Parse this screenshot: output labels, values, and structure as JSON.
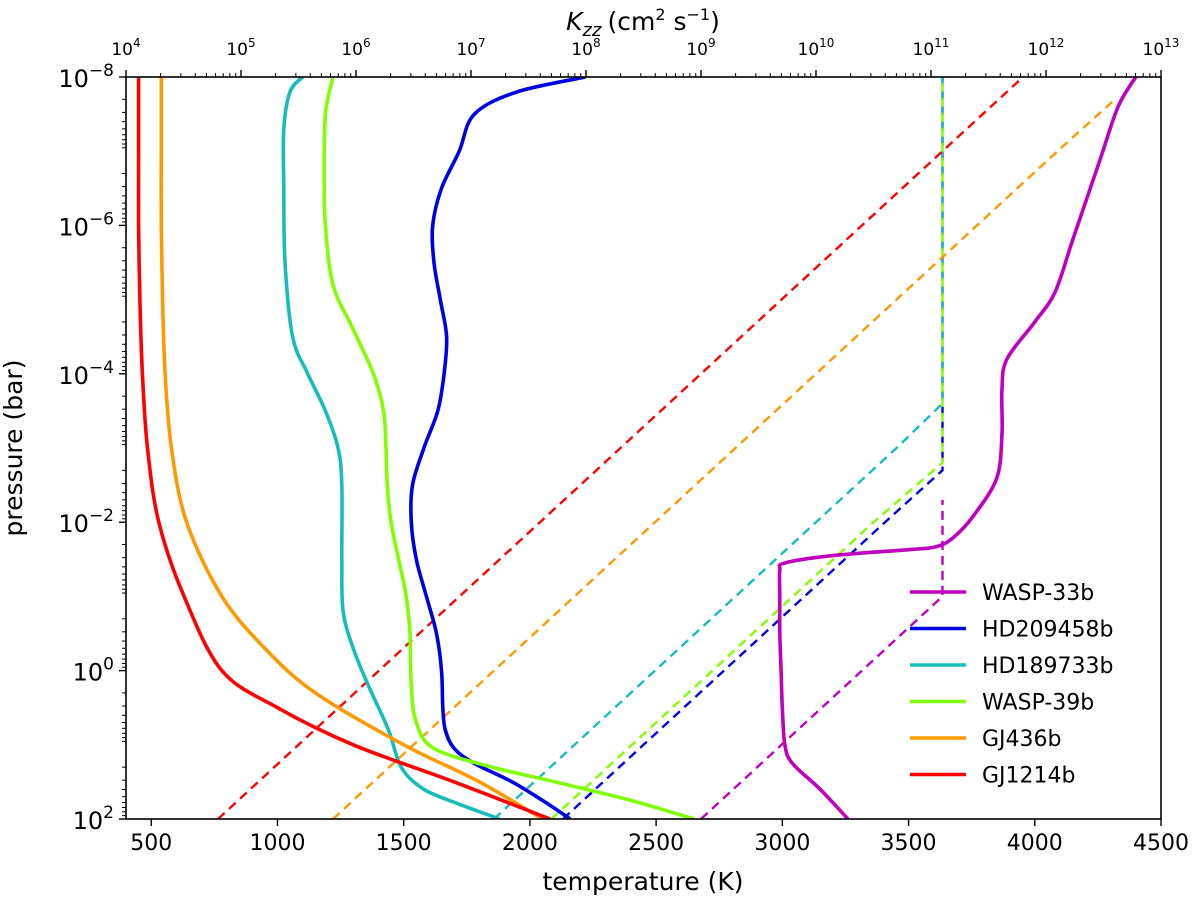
{
  "chart_data": {
    "type": "line",
    "title": "",
    "xlabel": "temperature (K)",
    "ylabel": "pressure (bar)",
    "x2label_base": "K",
    "x2label_sub": "zz",
    "x2label_units_prefix": "(cm",
    "x2label_units_exp1": "2",
    "x2label_units_mid": " s",
    "x2label_units_exp2": "−1",
    "x2label_units_suffix": ")",
    "xlim": [
      400,
      4500
    ],
    "x_ticks": [
      500,
      1000,
      1500,
      2000,
      2500,
      3000,
      3500,
      4000,
      4500
    ],
    "x_tick_labels": [
      "500",
      "1000",
      "1500",
      "2000",
      "2500",
      "3000",
      "3500",
      "4000",
      "4500"
    ],
    "ylim_log10": [
      -8,
      2
    ],
    "y_ticks_log10": [
      -8,
      -6,
      -4,
      -2,
      0,
      2
    ],
    "y_tick_base": "10",
    "y_tick_exponents": [
      "−8",
      "−6",
      "−4",
      "−2",
      "0",
      "2"
    ],
    "x2lim_log10": [
      4,
      13
    ],
    "x2_ticks_log10": [
      4,
      5,
      6,
      7,
      8,
      9,
      10,
      11,
      12,
      13
    ],
    "x2_tick_base": "10",
    "x2_tick_exponents": [
      "4",
      "5",
      "6",
      "7",
      "8",
      "9",
      "10",
      "11",
      "12",
      "13"
    ],
    "legend_position": "lower-right",
    "series": [
      {
        "name": "WASP-33b",
        "color": "#bf00bf",
        "temperature": [
          [
            3260,
            2.0
          ],
          [
            3150,
            1.6
          ],
          [
            3040,
            1.25
          ],
          [
            3010,
            1.0
          ],
          [
            3000,
            0.5
          ],
          [
            2995,
            0.0
          ],
          [
            2990,
            -0.5
          ],
          [
            2990,
            -1.0
          ],
          [
            2990,
            -1.35
          ],
          [
            3010,
            -1.45
          ],
          [
            3200,
            -1.55
          ],
          [
            3500,
            -1.63
          ],
          [
            3610,
            -1.67
          ],
          [
            3680,
            -1.8
          ],
          [
            3760,
            -2.1
          ],
          [
            3850,
            -2.6
          ],
          [
            3870,
            -3.2
          ],
          [
            3870,
            -3.8
          ],
          [
            3890,
            -4.2
          ],
          [
            4000,
            -4.7
          ],
          [
            4080,
            -5.1
          ],
          [
            4150,
            -5.8
          ],
          [
            4260,
            -6.9
          ],
          [
            4330,
            -7.6
          ],
          [
            4400,
            -8.0
          ]
        ],
        "kzz": [
          [
            9.0,
            2.0
          ],
          [
            9.7,
            1.0
          ],
          [
            10.4,
            0.0
          ],
          [
            11.1,
            -1.0
          ],
          [
            11.1,
            -2.0
          ],
          [
            11.1,
            -2.3
          ]
        ]
      },
      {
        "name": "HD209458b",
        "color": "#0000e6",
        "temperature": [
          [
            2160,
            2.0
          ],
          [
            2050,
            1.75
          ],
          [
            1930,
            1.5
          ],
          [
            1780,
            1.25
          ],
          [
            1700,
            1.05
          ],
          [
            1665,
            0.8
          ],
          [
            1655,
            0.5
          ],
          [
            1650,
            0.0
          ],
          [
            1630,
            -0.5
          ],
          [
            1590,
            -1.0
          ],
          [
            1550,
            -1.5
          ],
          [
            1530,
            -2.0
          ],
          [
            1535,
            -2.5
          ],
          [
            1580,
            -3.0
          ],
          [
            1635,
            -3.5
          ],
          [
            1660,
            -4.0
          ],
          [
            1670,
            -4.5
          ],
          [
            1645,
            -5.0
          ],
          [
            1620,
            -5.5
          ],
          [
            1615,
            -6.0
          ],
          [
            1650,
            -6.5
          ],
          [
            1720,
            -7.0
          ],
          [
            1780,
            -7.5
          ],
          [
            1950,
            -7.8
          ],
          [
            2220,
            -8.0
          ]
        ],
        "kzz": [
          [
            7.8,
            2.0
          ],
          [
            8.5,
            1.0
          ],
          [
            9.2,
            0.0
          ],
          [
            9.9,
            -1.0
          ],
          [
            10.6,
            -2.0
          ],
          [
            11.1,
            -2.7
          ],
          [
            11.1,
            -3.0
          ],
          [
            11.1,
            -8.0
          ]
        ]
      },
      {
        "name": "HD189733b",
        "color": "#17bcbc",
        "temperature": [
          [
            1880,
            2.0
          ],
          [
            1720,
            1.8
          ],
          [
            1580,
            1.6
          ],
          [
            1490,
            1.3
          ],
          [
            1440,
            0.8
          ],
          [
            1360,
            0.2
          ],
          [
            1300,
            -0.3
          ],
          [
            1260,
            -0.8
          ],
          [
            1255,
            -1.5
          ],
          [
            1255,
            -2.5
          ],
          [
            1240,
            -3.0
          ],
          [
            1190,
            -3.5
          ],
          [
            1120,
            -4.0
          ],
          [
            1060,
            -4.5
          ],
          [
            1030,
            -5.5
          ],
          [
            1025,
            -6.5
          ],
          [
            1025,
            -7.3
          ],
          [
            1050,
            -7.8
          ],
          [
            1100,
            -8.0
          ]
        ],
        "kzz": [
          [
            7.2,
            2.0
          ],
          [
            7.9,
            1.0
          ],
          [
            8.6,
            0.0
          ],
          [
            9.3,
            -1.0
          ],
          [
            10.0,
            -2.0
          ],
          [
            10.7,
            -3.0
          ],
          [
            11.1,
            -3.6
          ],
          [
            11.1,
            -8.0
          ]
        ]
      },
      {
        "name": "WASP-39b",
        "color": "#80ff00",
        "temperature": [
          [
            2650,
            2.0
          ],
          [
            2400,
            1.75
          ],
          [
            2100,
            1.5
          ],
          [
            1850,
            1.3
          ],
          [
            1620,
            1.05
          ],
          [
            1550,
            0.7
          ],
          [
            1530,
            0.2
          ],
          [
            1525,
            -0.5
          ],
          [
            1510,
            -1.0
          ],
          [
            1480,
            -1.5
          ],
          [
            1450,
            -2.0
          ],
          [
            1435,
            -2.5
          ],
          [
            1430,
            -3.0
          ],
          [
            1420,
            -3.5
          ],
          [
            1380,
            -4.0
          ],
          [
            1300,
            -4.6
          ],
          [
            1220,
            -5.2
          ],
          [
            1190,
            -6.0
          ],
          [
            1185,
            -6.7
          ],
          [
            1190,
            -7.5
          ],
          [
            1220,
            -8.0
          ]
        ],
        "kzz": [
          [
            7.7,
            2.0
          ],
          [
            8.4,
            1.0
          ],
          [
            9.1,
            0.0
          ],
          [
            9.8,
            -1.0
          ],
          [
            10.5,
            -2.0
          ],
          [
            11.1,
            -2.8
          ],
          [
            11.1,
            -8.0
          ]
        ]
      },
      {
        "name": "GJ436b",
        "color": "#ff9900",
        "temperature": [
          [
            2050,
            2.0
          ],
          [
            1800,
            1.5
          ],
          [
            1500,
            1.0
          ],
          [
            1150,
            0.3
          ],
          [
            950,
            -0.3
          ],
          [
            780,
            -1.0
          ],
          [
            640,
            -2.0
          ],
          [
            580,
            -3.0
          ],
          [
            555,
            -4.0
          ],
          [
            545,
            -5.0
          ],
          [
            540,
            -6.0
          ],
          [
            540,
            -7.0
          ],
          [
            540,
            -8.0
          ]
        ],
        "kzz": [
          [
            5.8,
            2.0
          ],
          [
            6.5,
            1.0
          ],
          [
            7.2,
            0.0
          ],
          [
            7.9,
            -1.0
          ],
          [
            8.6,
            -2.0
          ],
          [
            9.3,
            -3.0
          ],
          [
            10.0,
            -4.0
          ],
          [
            10.7,
            -5.0
          ],
          [
            11.4,
            -6.0
          ],
          [
            12.1,
            -7.0
          ],
          [
            12.6,
            -7.7
          ]
        ]
      },
      {
        "name": "GJ1214b",
        "color": "#ff0000",
        "temperature": [
          [
            2080,
            2.0
          ],
          [
            1700,
            1.5
          ],
          [
            1300,
            1.0
          ],
          [
            1000,
            0.5
          ],
          [
            780,
            0.0
          ],
          [
            630,
            -1.0
          ],
          [
            530,
            -2.0
          ],
          [
            485,
            -3.0
          ],
          [
            465,
            -4.0
          ],
          [
            455,
            -5.0
          ],
          [
            450,
            -6.0
          ],
          [
            450,
            -7.0
          ],
          [
            450,
            -8.0
          ]
        ],
        "kzz": [
          [
            4.8,
            2.0
          ],
          [
            5.5,
            1.0
          ],
          [
            6.2,
            0.0
          ],
          [
            6.9,
            -1.0
          ],
          [
            7.6,
            -2.0
          ],
          [
            8.3,
            -3.0
          ],
          [
            9.0,
            -4.0
          ],
          [
            9.7,
            -5.0
          ],
          [
            10.4,
            -6.0
          ],
          [
            11.1,
            -7.0
          ],
          [
            11.8,
            -8.0
          ]
        ]
      }
    ]
  }
}
